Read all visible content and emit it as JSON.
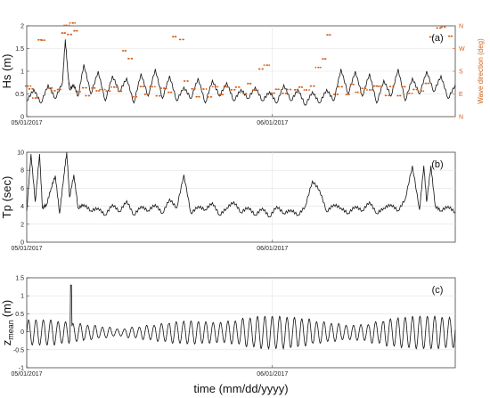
{
  "chart_data": [
    {
      "type": "line",
      "panel_label": "(a)",
      "ylabel": "Hs (m)",
      "ylabel_right": "Wave direction (deg)",
      "ylim": [
        0,
        2
      ],
      "yticks": [
        "0",
        "0.5",
        "1",
        "1.5",
        "2"
      ],
      "yticks_right": [
        "N",
        "E",
        "S",
        "W",
        "N"
      ],
      "xticks": [
        "05/01/2017",
        "06/01/2017"
      ],
      "xlim": [
        "2017-05-01",
        "2017-05-31"
      ],
      "grid": true,
      "series": [
        {
          "color": "#111111",
          "x_day": [
            1,
            1.5,
            2,
            2.5,
            3,
            3.5,
            3.7,
            3.9,
            4,
            4.3,
            4.6,
            5,
            5.5,
            6,
            6.5,
            7,
            7.5,
            8,
            8.5,
            9,
            9.5,
            10,
            10.5,
            11,
            11.5,
            12,
            12.5,
            13,
            13.5,
            14,
            14.5,
            15,
            15.5,
            16,
            16.5,
            17,
            17.5,
            18,
            18.5,
            19,
            19.5,
            20,
            20.5,
            21,
            21.5,
            22,
            22.5,
            23,
            23.5,
            24,
            24.5,
            25,
            25.5,
            26,
            26.5,
            27,
            27.5,
            28,
            28.5,
            29,
            29.5,
            30,
            30.5,
            31
          ],
          "values": [
            0.35,
            0.6,
            0.3,
            0.7,
            0.4,
            0.75,
            1.7,
            0.9,
            0.6,
            0.7,
            0.45,
            1.15,
            0.5,
            1.0,
            0.35,
            0.9,
            0.55,
            0.85,
            0.3,
            0.95,
            0.45,
            1.05,
            0.4,
            0.9,
            0.35,
            0.65,
            0.4,
            0.85,
            0.3,
            0.8,
            0.45,
            0.75,
            0.35,
            0.6,
            0.4,
            0.65,
            0.35,
            0.55,
            0.3,
            0.7,
            0.35,
            0.6,
            0.25,
            0.55,
            0.3,
            0.6,
            0.35,
            1.05,
            0.5,
            1.0,
            0.45,
            0.95,
            0.3,
            0.8,
            0.45,
            1.05,
            0.35,
            0.85,
            0.5,
            1.0,
            0.55,
            0.9,
            0.4,
            0.7
          ]
        },
        {
          "type": "scatter",
          "color": "#d2601a",
          "y_axis": "right",
          "x_day": [
            1.1,
            1.3,
            1.6,
            1.9,
            2.2,
            2.6,
            2.9,
            3.2,
            3.6,
            3.8,
            4.0,
            4.2,
            4.4,
            4.7,
            5.0,
            5.3,
            5.6,
            6.0,
            6.3,
            6.7,
            7.1,
            7.5,
            7.9,
            8.2,
            8.6,
            9.0,
            9.4,
            9.8,
            10.2,
            10.6,
            11.0,
            11.4,
            11.8,
            12.2,
            12.6,
            13.0,
            13.4,
            13.8,
            14.2,
            14.6,
            15.0,
            15.4,
            15.8,
            16.2,
            16.6,
            17.0,
            17.4,
            17.8,
            18.2,
            18.6,
            19.0,
            19.4,
            19.8,
            20.2,
            20.6,
            21.0,
            21.4,
            21.8,
            22.2,
            22.6,
            23.0,
            23.4,
            23.8,
            24.2,
            24.6,
            25.0,
            25.4,
            25.8,
            26.2,
            26.6,
            27.0,
            27.4,
            27.8,
            28.2,
            28.6,
            29.0,
            29.4,
            29.8,
            30.2,
            30.6
          ],
          "direction_deg": [
            100,
            110,
            95,
            300,
            320,
            105,
            115,
            95,
            340,
            345,
            330,
            350,
            340,
            120,
            110,
            100,
            105,
            115,
            95,
            110,
            100,
            105,
            240,
            230,
            100,
            115,
            105,
            110,
            95,
            100,
            105,
            300,
            310,
            120,
            110,
            100,
            105,
            95,
            110,
            100,
            105,
            115,
            100,
            95,
            110,
            105,
            210,
            200,
            110,
            100,
            105,
            95,
            115,
            100,
            110,
            100,
            195,
            250,
            320,
            105,
            110,
            100,
            115,
            105,
            95,
            110,
            100,
            120,
            105,
            115,
            100,
            110,
            105,
            95,
            110,
            115,
            320,
            330,
            355,
            340
          ]
        }
      ]
    },
    {
      "type": "line",
      "panel_label": "(b)",
      "ylabel": "Tp (sec)",
      "ylim": [
        0,
        10
      ],
      "yticks": [
        "0",
        "2",
        "4",
        "6",
        "8",
        "10"
      ],
      "xticks": [
        "05/01/2017",
        "06/01/2017"
      ],
      "xlim": [
        "2017-05-01",
        "2017-05-31"
      ],
      "grid": true,
      "series": [
        {
          "color": "#111111",
          "x_day": [
            1,
            1.3,
            1.6,
            1.9,
            2.1,
            2.4,
            2.7,
            3.0,
            3.3,
            3.6,
            3.8,
            4.0,
            4.3,
            4.6,
            5,
            5.5,
            6,
            6.5,
            7,
            7.5,
            8,
            8.5,
            9,
            9.5,
            10,
            10.5,
            11,
            11.5,
            12,
            12.5,
            13,
            13.5,
            14,
            14.5,
            15,
            15.5,
            16,
            16.5,
            17,
            17.5,
            18,
            18.5,
            19,
            19.5,
            20,
            20.5,
            21,
            21.5,
            22,
            22.5,
            23,
            23.5,
            24,
            24.5,
            25,
            25.5,
            26,
            26.5,
            27,
            27.5,
            28,
            28.5,
            28.8,
            29,
            29.3,
            29.6,
            30,
            30.5,
            31
          ],
          "values": [
            3.5,
            9.8,
            4.5,
            9.8,
            3.8,
            4.2,
            6.0,
            7.4,
            3.2,
            7.4,
            10.0,
            5.0,
            7.5,
            3.8,
            4.2,
            3.5,
            3.8,
            3.0,
            4.2,
            3.4,
            4.6,
            3.0,
            4.0,
            3.5,
            4.2,
            3.2,
            4.8,
            3.8,
            7.5,
            3.2,
            4.0,
            3.6,
            4.4,
            3.0,
            3.8,
            4.5,
            3.3,
            3.9,
            3.0,
            3.8,
            2.8,
            4.0,
            3.2,
            3.6,
            3.0,
            4.0,
            6.8,
            5.8,
            3.4,
            4.2,
            3.8,
            3.2,
            4.0,
            3.5,
            4.5,
            3.2,
            3.8,
            4.2,
            3.5,
            4.8,
            8.5,
            3.6,
            8.5,
            4.5,
            8.5,
            4.0,
            3.5,
            4.0,
            3.3
          ]
        }
      ]
    },
    {
      "type": "line",
      "panel_label": "(c)",
      "ylabel": "z",
      "ylabel_sub": "mean",
      "ylabel_unit": "(m)",
      "ylim": [
        -1,
        1.5
      ],
      "yticks": [
        "-1",
        "-0.5",
        "0",
        "0.5",
        "1",
        "1.5"
      ],
      "xticks": [
        "05/01/2017",
        "06/01/2017"
      ],
      "xlim": [
        "2017-05-01",
        "2017-05-31"
      ],
      "xlabel": "time (mm/dd/yyyy)",
      "grid": true,
      "series": [
        {
          "color": "#111111",
          "tidal_period_days": 0.517,
          "amplitude_peaks": [
            0.35,
            0.35,
            0.3,
            0.25,
            0.2,
            0.15,
            0.1,
            0.15,
            0.2,
            0.25,
            0.3,
            0.32,
            0.3,
            0.28,
            0.32,
            0.4,
            0.45,
            0.45,
            0.42,
            0.38,
            0.3,
            0.25,
            0.2,
            0.22,
            0.3,
            0.38,
            0.42,
            0.45,
            0.45,
            0.42,
            0.4
          ],
          "spike": {
            "x_day": 4.1,
            "value": 1.3
          }
        }
      ]
    }
  ]
}
